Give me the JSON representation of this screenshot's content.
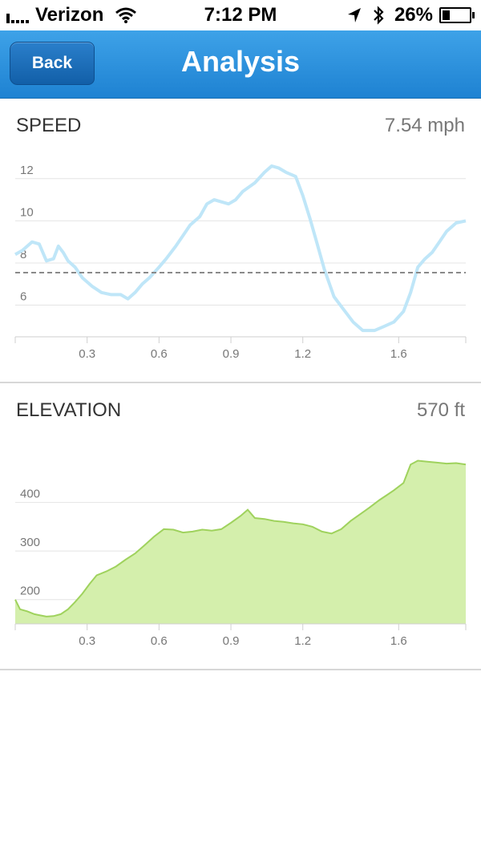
{
  "status_bar": {
    "carrier": "Verizon",
    "time": "7:12 PM",
    "battery": "26%"
  },
  "nav": {
    "back_label": "Back",
    "title": "Analysis"
  },
  "speed": {
    "title": "SPEED",
    "value": "7.54 mph"
  },
  "elevation": {
    "title": "ELEVATION",
    "value": "570 ft"
  },
  "colors": {
    "nav": "#2b8fdc",
    "speed_line": "#bfe6f8",
    "elevation_fill": "#d4efac",
    "elevation_line": "#9fd25d"
  },
  "chart_data": [
    {
      "type": "line",
      "title": "SPEED",
      "x_ticks": [
        0.3,
        0.6,
        0.9,
        1.2,
        1.6
      ],
      "y_ticks": [
        6,
        8,
        10,
        12
      ],
      "average": 7.54,
      "x": [
        0,
        0.03,
        0.07,
        0.1,
        0.13,
        0.16,
        0.18,
        0.2,
        0.22,
        0.25,
        0.28,
        0.32,
        0.36,
        0.4,
        0.44,
        0.47,
        0.5,
        0.53,
        0.56,
        0.6,
        0.63,
        0.67,
        0.7,
        0.73,
        0.77,
        0.8,
        0.83,
        0.86,
        0.89,
        0.92,
        0.95,
        1.0,
        1.04,
        1.07,
        1.1,
        1.13,
        1.17,
        1.2,
        1.23,
        1.26,
        1.29,
        1.33,
        1.37,
        1.41,
        1.45,
        1.5,
        1.54,
        1.58,
        1.62,
        1.65,
        1.68,
        1.71,
        1.74,
        1.77,
        1.8,
        1.84,
        1.88
      ],
      "y": [
        8.4,
        8.6,
        9.0,
        8.9,
        8.1,
        8.2,
        8.8,
        8.5,
        8.1,
        7.8,
        7.3,
        6.9,
        6.6,
        6.5,
        6.5,
        6.3,
        6.6,
        7.0,
        7.3,
        7.8,
        8.2,
        8.8,
        9.3,
        9.8,
        10.2,
        10.8,
        11.0,
        10.9,
        10.8,
        11.0,
        11.4,
        11.8,
        12.3,
        12.6,
        12.5,
        12.3,
        12.1,
        11.2,
        10.1,
        8.9,
        7.7,
        6.4,
        5.8,
        5.2,
        4.8,
        4.8,
        5.0,
        5.2,
        5.7,
        6.6,
        7.8,
        8.2,
        8.5,
        9.0,
        9.5,
        9.9,
        10.0
      ]
    },
    {
      "type": "area",
      "title": "ELEVATION",
      "x_ticks": [
        0.3,
        0.6,
        0.9,
        1.2,
        1.6
      ],
      "y_ticks": [
        200,
        300,
        400
      ],
      "x": [
        0,
        0.02,
        0.05,
        0.08,
        0.1,
        0.13,
        0.16,
        0.19,
        0.22,
        0.25,
        0.28,
        0.31,
        0.34,
        0.38,
        0.42,
        0.46,
        0.5,
        0.54,
        0.58,
        0.62,
        0.66,
        0.7,
        0.74,
        0.78,
        0.82,
        0.86,
        0.9,
        0.94,
        0.97,
        1.0,
        1.04,
        1.08,
        1.12,
        1.16,
        1.2,
        1.24,
        1.28,
        1.32,
        1.36,
        1.4,
        1.44,
        1.48,
        1.52,
        1.55,
        1.58,
        1.62,
        1.65,
        1.68,
        1.72,
        1.76,
        1.8,
        1.84,
        1.88
      ],
      "y": [
        200,
        180,
        176,
        170,
        168,
        165,
        166,
        170,
        180,
        195,
        212,
        232,
        250,
        258,
        268,
        282,
        295,
        312,
        330,
        345,
        344,
        338,
        340,
        344,
        342,
        345,
        358,
        372,
        385,
        368,
        366,
        362,
        360,
        357,
        355,
        350,
        340,
        336,
        345,
        362,
        376,
        390,
        405,
        415,
        425,
        440,
        478,
        486,
        484,
        482,
        480,
        481,
        478
      ]
    }
  ]
}
